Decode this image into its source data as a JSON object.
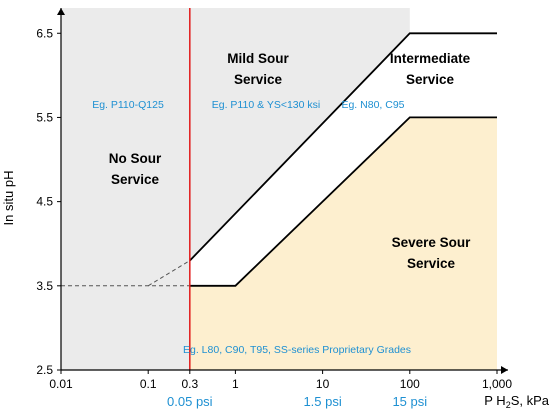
{
  "chart_data": {
    "type": "area",
    "title": "",
    "xscale": "log",
    "xlim": [
      0.01,
      1000
    ],
    "ylim": [
      2.5,
      6.8
    ],
    "xlabel": {
      "prefix": "P H",
      "sub": "2",
      "suffix": "S, kPa"
    },
    "ylabel": "In situ pH",
    "x_ticks": [
      {
        "v": 0.01,
        "label": "0.01"
      },
      {
        "v": 0.1,
        "label": "0.1"
      },
      {
        "v": 0.3,
        "label": "0.3"
      },
      {
        "v": 1,
        "label": "1"
      },
      {
        "v": 10,
        "label": "10"
      },
      {
        "v": 100,
        "label": "100"
      },
      {
        "v": 1000,
        "label": "1,000"
      }
    ],
    "y_ticks": [
      {
        "v": 2.5,
        "label": "2.5"
      },
      {
        "v": 3.5,
        "label": "3.5"
      },
      {
        "v": 4.5,
        "label": "4.5"
      },
      {
        "v": 5.5,
        "label": "5.5"
      },
      {
        "v": 6.5,
        "label": "6.5"
      }
    ],
    "psi_ticks": [
      {
        "v": 0.3,
        "label": "0.05 psi"
      },
      {
        "v": 10,
        "label": "1.5 psi"
      },
      {
        "v": 100,
        "label": "15 psi"
      }
    ],
    "colors": {
      "no_sour": "#ebebeb",
      "severe": "#fdefcf",
      "red_line": "#e21a1a",
      "blue_text": "#1e90d2",
      "boundary": "#000000"
    },
    "threshold_x": 0.3,
    "boundaries": {
      "upper": [
        [
          0.3,
          3.8
        ],
        [
          100,
          6.5
        ],
        [
          1000,
          6.5
        ]
      ],
      "lower": [
        [
          0.3,
          3.5
        ],
        [
          1,
          3.5
        ],
        [
          100,
          5.5
        ],
        [
          1000,
          5.5
        ]
      ],
      "dashed_upper": [
        [
          0.1,
          3.5
        ],
        [
          0.3,
          3.8
        ]
      ],
      "dashed_lower": [
        [
          0.01,
          3.5
        ],
        [
          0.3,
          3.5
        ]
      ]
    },
    "regions": [
      {
        "name": "No Sour Service",
        "lines": [
          "No Sour",
          "Service"
        ],
        "example": "Eg. P110-Q125"
      },
      {
        "name": "Mild Sour Service",
        "lines": [
          "Mild Sour",
          "Service"
        ],
        "example": "Eg. P110 & YS<130 ksi"
      },
      {
        "name": "Intermediate Service",
        "lines": [
          "Intermediate",
          "Service"
        ],
        "example": "Eg. N80, C95"
      },
      {
        "name": "Severe Sour Service",
        "lines": [
          "Severe Sour",
          "Service"
        ],
        "example": "Eg. L80, C90, T95, SS-series Proprietary Grades"
      }
    ]
  }
}
